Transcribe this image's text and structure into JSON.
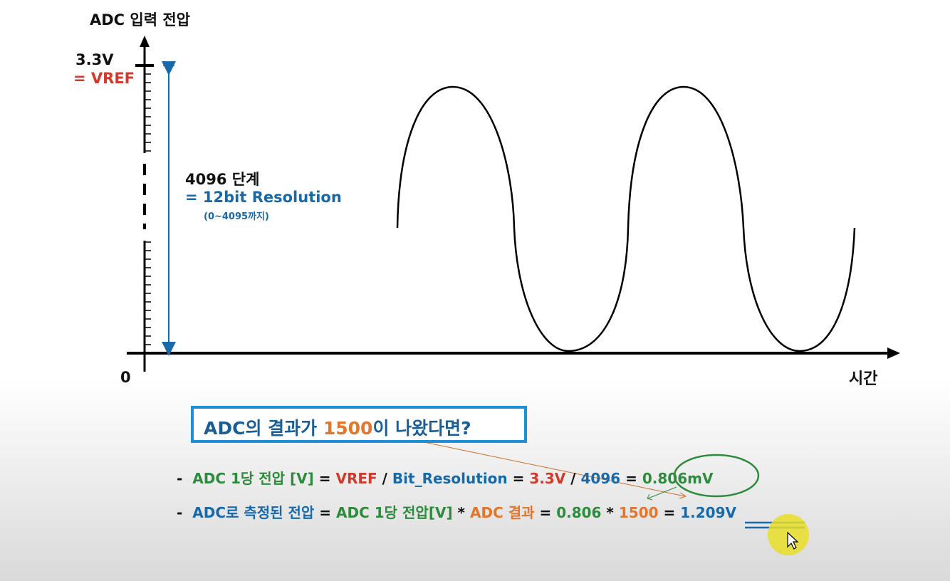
{
  "axis": {
    "y_label": "ADC 입력 전압",
    "x_label": "시간",
    "origin": "0",
    "max_value": "3.3V",
    "max_alias": "= VREF"
  },
  "range_annotation": {
    "steps": "4096 단계",
    "resolution": "= 12bit Resolution",
    "range_note": "(0~4095까지)"
  },
  "question": {
    "prefix": "ADC의 결과가 ",
    "value": "1500",
    "suffix": "이 나왔다면?"
  },
  "formula1": {
    "dash": "-",
    "label": "ADC 1당 전압 [V]",
    "eq1": " = ",
    "vref": "VREF",
    "slash1": " / ",
    "bitres": "Bit_Resolution",
    "eq2": " = ",
    "v33": "3.3V",
    "slash2": " / ",
    "n4096": "4096",
    "eq3": " = ",
    "result": "0.806mV"
  },
  "formula2": {
    "dash": "-",
    "label": "ADC로 측정된 전압",
    "eq1": " = ",
    "perunit": "ADC 1당 전압[V]",
    "star1": " * ",
    "adcresult": "ADC 결과",
    "eq2": " = ",
    "v0806": "0.806",
    "star2": " * ",
    "v1500": "1500",
    "eq3": " = ",
    "result": "1.209V"
  },
  "colors": {
    "blue": "#1769aa",
    "red": "#d03a2c",
    "green": "#2e8b3e",
    "orange": "#e2762a",
    "box_border": "#1e8fd6",
    "cursor": "#e8de28"
  }
}
